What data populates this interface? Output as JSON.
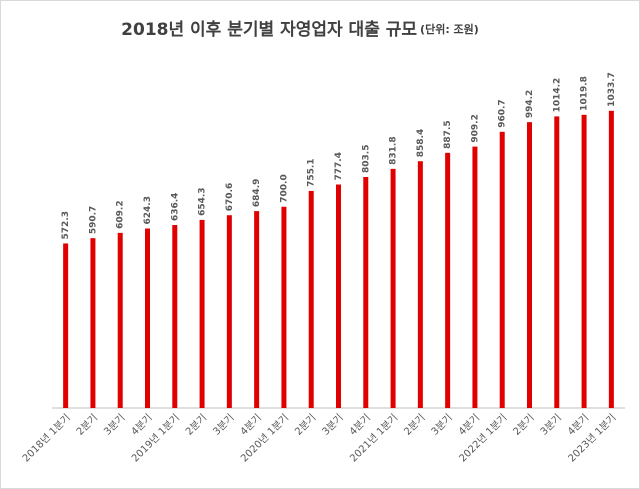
{
  "chart_data": {
    "type": "bar",
    "title": "2018년 이후 분기별 자영업자 대출 규모",
    "subtitle": "(단위: 조원)",
    "categories": [
      "2018년 1분기",
      "2분기",
      "3분기",
      "4분기",
      "2019년 1분기",
      "2분기",
      "3분기",
      "4분기",
      "2020년 1분기",
      "2분기",
      "3분기",
      "4분기",
      "2021년 1분기",
      "2분기",
      "3분기",
      "4분기",
      "2022년 1분기",
      "2분기",
      "3분기",
      "4분기",
      "2023년 1분기"
    ],
    "values": [
      572.3,
      590.7,
      609.2,
      624.3,
      636.4,
      654.3,
      670.6,
      684.9,
      700.0,
      755.1,
      777.4,
      803.5,
      831.8,
      858.4,
      887.5,
      909.2,
      960.7,
      994.2,
      1014.2,
      1019.8,
      1033.7
    ],
    "value_labels": [
      "572.3",
      "590.7",
      "609.2",
      "624.3",
      "636.4",
      "654.3",
      "670.6",
      "684.9",
      "700.0",
      "755.1",
      "777.4",
      "803.5",
      "831.8",
      "858.4",
      "887.5",
      "909.2",
      "960.7",
      "994.2",
      "1014.2",
      "1019.8",
      "1033.7"
    ],
    "color": "#e00000",
    "ylim": [
      0,
      1200
    ]
  }
}
